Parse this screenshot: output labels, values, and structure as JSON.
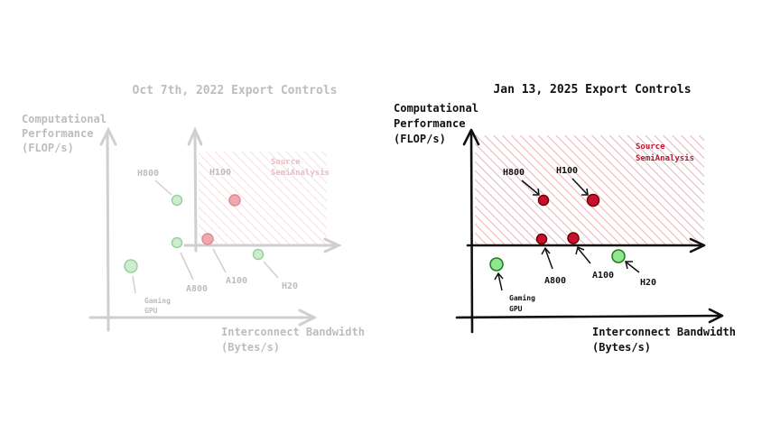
{
  "left_panel": {
    "title": "Oct 7th, 2022 Export Controls",
    "y_axis_label": [
      "Computational",
      "Performance",
      "(FLOP/s)"
    ],
    "x_axis_label": [
      "Interconnect Bandwidth",
      "(Bytes/s)"
    ],
    "source_label": [
      "Source",
      "SemiAnalysis"
    ],
    "points": [
      {
        "label": "H800",
        "status": "allowed"
      },
      {
        "label": "H100",
        "status": "restricted"
      },
      {
        "label": "A800",
        "status": "allowed"
      },
      {
        "label": "A100",
        "status": "restricted"
      },
      {
        "label": "H20",
        "status": "allowed"
      },
      {
        "label": "Gaming GPU",
        "label_lines": [
          "Gaming",
          "GPU"
        ],
        "status": "allowed"
      }
    ]
  },
  "right_panel": {
    "title": "Jan 13, 2025 Export Controls",
    "y_axis_label": [
      "Computational",
      "Performance",
      "(FLOP/s)"
    ],
    "x_axis_label": [
      "Interconnect Bandwidth",
      "(Bytes/s)"
    ],
    "source_label": [
      "Source",
      "SemiAnalysis"
    ],
    "points": [
      {
        "label": "H800",
        "status": "restricted"
      },
      {
        "label": "H100",
        "status": "restricted"
      },
      {
        "label": "A800",
        "status": "restricted"
      },
      {
        "label": "A100",
        "status": "restricted"
      },
      {
        "label": "H20",
        "status": "allowed"
      },
      {
        "label": "Gaming GPU",
        "label_lines": [
          "Gaming",
          "GPU"
        ],
        "status": "allowed"
      }
    ]
  },
  "colors": {
    "allowed_fill": "#8ee68e",
    "allowed_stroke": "#1f7a1f",
    "restricted_fill": "#c8102e",
    "restricted_stroke": "#6e0000",
    "hatch": "#e8a0a8",
    "source_text": "#c8102e",
    "ink": "#111111",
    "faded_ink": "#bdbdbd"
  }
}
